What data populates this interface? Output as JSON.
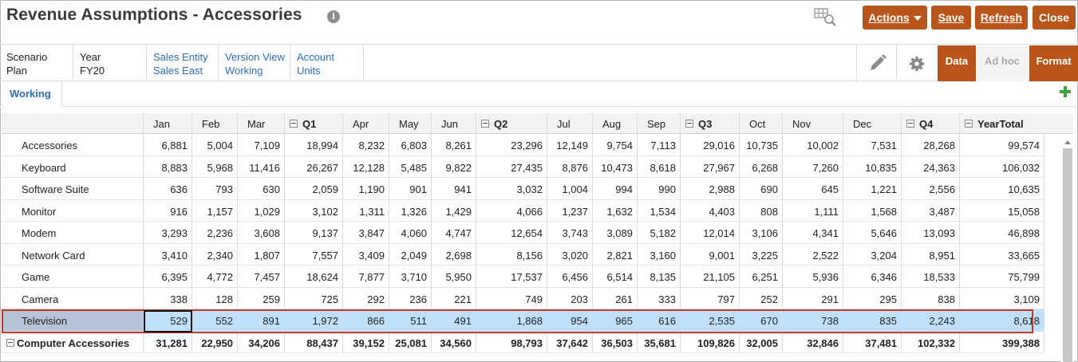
{
  "title": "Revenue Assumptions - Accessories",
  "buttons": {
    "actions": "Actions",
    "save": "Save",
    "refresh": "Refresh",
    "close": "Close"
  },
  "pov": [
    {
      "label": "Scenario",
      "value": "Plan"
    },
    {
      "label": "Year",
      "value": "FY20"
    },
    {
      "label": "Sales Entity",
      "value": "Sales East"
    },
    {
      "label": "Version View",
      "value": "Working"
    },
    {
      "label": "Account",
      "value": "Units"
    }
  ],
  "modes": {
    "data": "Data",
    "adhoc": "Ad hoc",
    "format": "Format"
  },
  "tab": "Working",
  "columns": [
    "Jan",
    "Feb",
    "Mar",
    "Q1",
    "Apr",
    "May",
    "Jun",
    "Q2",
    "Jul",
    "Aug",
    "Sep",
    "Q3",
    "Oct",
    "Nov",
    "Dec",
    "Q4",
    "YearTotal"
  ],
  "rows": [
    {
      "label": "Accessories",
      "values": [
        "6,881",
        "5,004",
        "7,109",
        "18,994",
        "8,232",
        "6,803",
        "8,261",
        "23,296",
        "12,149",
        "9,754",
        "7,113",
        "29,016",
        "10,735",
        "10,002",
        "7,531",
        "28,268",
        "99,574"
      ]
    },
    {
      "label": "Keyboard",
      "values": [
        "8,883",
        "5,968",
        "11,416",
        "26,267",
        "12,128",
        "5,485",
        "9,822",
        "27,435",
        "8,876",
        "10,473",
        "8,618",
        "27,967",
        "6,268",
        "7,260",
        "10,835",
        "24,363",
        "106,032"
      ]
    },
    {
      "label": "Software Suite",
      "values": [
        "636",
        "793",
        "630",
        "2,059",
        "1,190",
        "901",
        "941",
        "3,032",
        "1,004",
        "994",
        "990",
        "2,988",
        "690",
        "645",
        "1,221",
        "2,556",
        "10,635"
      ]
    },
    {
      "label": "Monitor",
      "values": [
        "916",
        "1,157",
        "1,029",
        "3,102",
        "1,311",
        "1,326",
        "1,429",
        "4,066",
        "1,237",
        "1,632",
        "1,534",
        "4,403",
        "808",
        "1,111",
        "1,568",
        "3,487",
        "15,058"
      ]
    },
    {
      "label": "Modem",
      "values": [
        "3,293",
        "2,236",
        "3,608",
        "9,137",
        "3,847",
        "4,060",
        "4,747",
        "12,654",
        "3,743",
        "3,089",
        "5,182",
        "12,014",
        "3,106",
        "4,341",
        "5,646",
        "13,093",
        "46,898"
      ]
    },
    {
      "label": "Network Card",
      "values": [
        "3,410",
        "2,340",
        "1,807",
        "7,557",
        "3,409",
        "2,049",
        "2,698",
        "8,156",
        "3,020",
        "2,821",
        "3,160",
        "9,001",
        "3,225",
        "2,522",
        "3,204",
        "8,951",
        "33,665"
      ]
    },
    {
      "label": "Game",
      "values": [
        "6,395",
        "4,772",
        "7,457",
        "18,624",
        "7,877",
        "3,710",
        "5,950",
        "17,537",
        "6,456",
        "6,514",
        "8,135",
        "21,105",
        "6,251",
        "5,936",
        "6,346",
        "18,533",
        "75,799"
      ]
    },
    {
      "label": "Camera",
      "values": [
        "338",
        "128",
        "259",
        "725",
        "292",
        "236",
        "221",
        "749",
        "203",
        "261",
        "333",
        "797",
        "252",
        "291",
        "295",
        "838",
        "3,109"
      ]
    },
    {
      "label": "Television",
      "values": [
        "529",
        "552",
        "891",
        "1,972",
        "866",
        "511",
        "491",
        "1,868",
        "954",
        "965",
        "616",
        "2,535",
        "670",
        "738",
        "835",
        "2,243",
        "8,618"
      ]
    },
    {
      "label": "Computer Accessories",
      "values": [
        "31,281",
        "22,950",
        "34,206",
        "88,437",
        "39,152",
        "25,081",
        "34,560",
        "98,793",
        "37,642",
        "36,503",
        "35,681",
        "109,826",
        "32,005",
        "32,846",
        "37,481",
        "102,332",
        "399,388"
      ]
    }
  ]
}
